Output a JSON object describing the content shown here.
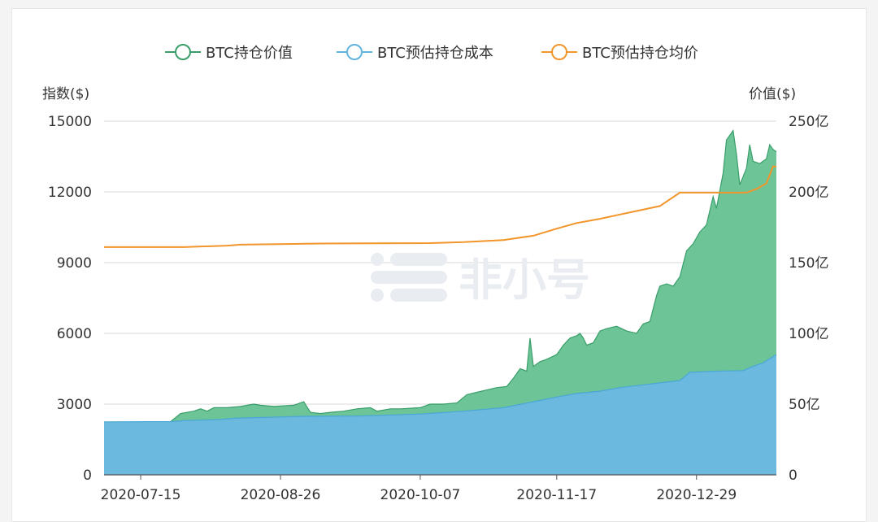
{
  "legend": [
    {
      "label": "BTC持仓价值",
      "color": "#3a9e6a"
    },
    {
      "label": "BTC预估持仓成本",
      "color": "#62b4de"
    },
    {
      "label": "BTC预估持仓均价",
      "color": "#f2952a"
    }
  ],
  "watermark": {
    "text": "非小号"
  },
  "chart_data": {
    "type": "area",
    "left_axis": {
      "title": "指数($)",
      "min": 0,
      "max": 15000,
      "ticks": [
        "0",
        "3000",
        "6000",
        "9000",
        "12000",
        "15000"
      ]
    },
    "right_axis": {
      "title": "价值($)",
      "min": 0,
      "max": 250,
      "ticks": [
        "0",
        "50亿",
        "100亿",
        "150亿",
        "200亿",
        "250亿"
      ]
    },
    "x_ticks": [
      "2020-07-15",
      "2020-08-26",
      "2020-10-07",
      "2020-11-17",
      "2020-12-29"
    ],
    "x_start": "2020-07-04",
    "x_end": "2021-01-22",
    "grid": true,
    "legend_position": "top",
    "series": [
      {
        "name": "BTC持仓价值",
        "type": "area",
        "axis": "left",
        "color": "#3a9e6a",
        "fill": "#6cc497",
        "points": [
          [
            "2020-07-04",
            2100
          ],
          [
            "2020-07-06",
            2200
          ],
          [
            "2020-07-10",
            2180
          ],
          [
            "2020-07-15",
            2170
          ],
          [
            "2020-07-20",
            2200
          ],
          [
            "2020-07-24",
            2260
          ],
          [
            "2020-07-27",
            2600
          ],
          [
            "2020-07-31",
            2700
          ],
          [
            "2020-08-02",
            2800
          ],
          [
            "2020-08-04",
            2700
          ],
          [
            "2020-08-06",
            2850
          ],
          [
            "2020-08-10",
            2850
          ],
          [
            "2020-08-14",
            2900
          ],
          [
            "2020-08-18",
            3000
          ],
          [
            "2020-08-20",
            2950
          ],
          [
            "2020-08-24",
            2900
          ],
          [
            "2020-08-26",
            2920
          ],
          [
            "2020-08-30",
            2950
          ],
          [
            "2020-09-02",
            3100
          ],
          [
            "2020-09-04",
            2650
          ],
          [
            "2020-09-07",
            2600
          ],
          [
            "2020-09-10",
            2650
          ],
          [
            "2020-09-14",
            2700
          ],
          [
            "2020-09-18",
            2800
          ],
          [
            "2020-09-22",
            2850
          ],
          [
            "2020-09-24",
            2700
          ],
          [
            "2020-09-28",
            2800
          ],
          [
            "2020-10-01",
            2800
          ],
          [
            "2020-10-07",
            2850
          ],
          [
            "2020-10-10",
            3000
          ],
          [
            "2020-10-14",
            3000
          ],
          [
            "2020-10-18",
            3050
          ],
          [
            "2020-10-21",
            3400
          ],
          [
            "2020-10-24",
            3500
          ],
          [
            "2020-10-27",
            3600
          ],
          [
            "2020-10-30",
            3700
          ],
          [
            "2020-11-02",
            3750
          ],
          [
            "2020-11-04",
            4100
          ],
          [
            "2020-11-06",
            4500
          ],
          [
            "2020-11-08",
            4400
          ],
          [
            "2020-11-09",
            5800
          ],
          [
            "2020-11-10",
            4600
          ],
          [
            "2020-11-12",
            4800
          ],
          [
            "2020-11-14",
            4900
          ],
          [
            "2020-11-17",
            5100
          ],
          [
            "2020-11-19",
            5500
          ],
          [
            "2020-11-21",
            5800
          ],
          [
            "2020-11-23",
            5900
          ],
          [
            "2020-11-24",
            6000
          ],
          [
            "2020-11-25",
            5800
          ],
          [
            "2020-11-26",
            5500
          ],
          [
            "2020-11-28",
            5600
          ],
          [
            "2020-11-30",
            6100
          ],
          [
            "2020-12-02",
            6200
          ],
          [
            "2020-12-05",
            6300
          ],
          [
            "2020-12-08",
            6100
          ],
          [
            "2020-12-11",
            6000
          ],
          [
            "2020-12-13",
            6400
          ],
          [
            "2020-12-15",
            6500
          ],
          [
            "2020-12-17",
            7600
          ],
          [
            "2020-12-18",
            8000
          ],
          [
            "2020-12-20",
            8100
          ],
          [
            "2020-12-22",
            8000
          ],
          [
            "2020-12-24",
            8400
          ],
          [
            "2020-12-26",
            9500
          ],
          [
            "2020-12-28",
            9800
          ],
          [
            "2020-12-30",
            10300
          ],
          [
            "2021-01-01",
            10600
          ],
          [
            "2021-01-03",
            11800
          ],
          [
            "2021-01-04",
            11300
          ],
          [
            "2021-01-06",
            12800
          ],
          [
            "2021-01-07",
            14200
          ],
          [
            "2021-01-09",
            14600
          ],
          [
            "2021-01-10",
            13600
          ],
          [
            "2021-01-11",
            12300
          ],
          [
            "2021-01-13",
            13000
          ],
          [
            "2021-01-14",
            14000
          ],
          [
            "2021-01-15",
            13300
          ],
          [
            "2021-01-17",
            13200
          ],
          [
            "2021-01-19",
            13400
          ],
          [
            "2021-01-20",
            14000
          ],
          [
            "2021-01-21",
            13800
          ],
          [
            "2021-01-22",
            13700
          ]
        ]
      },
      {
        "name": "BTC预估持仓成本",
        "type": "area",
        "axis": "left",
        "color": "#4aa7d6",
        "fill": "#6bb9de",
        "points": [
          [
            "2020-07-04",
            2250
          ],
          [
            "2020-07-24",
            2260
          ],
          [
            "2020-07-28",
            2300
          ],
          [
            "2020-08-08",
            2350
          ],
          [
            "2020-08-12",
            2400
          ],
          [
            "2020-09-01",
            2480
          ],
          [
            "2020-09-20",
            2500
          ],
          [
            "2020-10-07",
            2580
          ],
          [
            "2020-10-20",
            2700
          ],
          [
            "2020-11-01",
            2850
          ],
          [
            "2020-11-10",
            3100
          ],
          [
            "2020-11-17",
            3300
          ],
          [
            "2020-11-23",
            3450
          ],
          [
            "2020-11-30",
            3550
          ],
          [
            "2020-12-06",
            3700
          ],
          [
            "2020-12-12",
            3800
          ],
          [
            "2020-12-18",
            3900
          ],
          [
            "2020-12-24",
            4000
          ],
          [
            "2020-12-27",
            4350
          ],
          [
            "2021-01-05",
            4400
          ],
          [
            "2021-01-12",
            4420
          ],
          [
            "2021-01-15",
            4600
          ],
          [
            "2021-01-18",
            4750
          ],
          [
            "2021-01-22",
            5100
          ]
        ]
      },
      {
        "name": "BTC预估持仓均价",
        "type": "line",
        "axis": "right",
        "color": "#f2952a",
        "points": [
          [
            "2020-07-04",
            161
          ],
          [
            "2020-07-28",
            161
          ],
          [
            "2020-08-10",
            162
          ],
          [
            "2020-08-14",
            162.7
          ],
          [
            "2020-08-30",
            163.2
          ],
          [
            "2020-09-07",
            163.5
          ],
          [
            "2020-09-21",
            163.6
          ],
          [
            "2020-10-10",
            163.8
          ],
          [
            "2020-10-20",
            164.5
          ],
          [
            "2020-11-01",
            166
          ],
          [
            "2020-11-10",
            169
          ],
          [
            "2020-11-17",
            174
          ],
          [
            "2020-11-23",
            178
          ],
          [
            "2020-11-30",
            181
          ],
          [
            "2020-12-06",
            184
          ],
          [
            "2020-12-12",
            187
          ],
          [
            "2020-12-18",
            190
          ],
          [
            "2020-12-24",
            199.5
          ],
          [
            "2020-12-28",
            199.5
          ],
          [
            "2021-01-09",
            199.5
          ],
          [
            "2021-01-13",
            199.5
          ],
          [
            "2021-01-16",
            202
          ],
          [
            "2021-01-19",
            206
          ],
          [
            "2021-01-21",
            218
          ],
          [
            "2021-01-22",
            218
          ]
        ]
      }
    ]
  }
}
